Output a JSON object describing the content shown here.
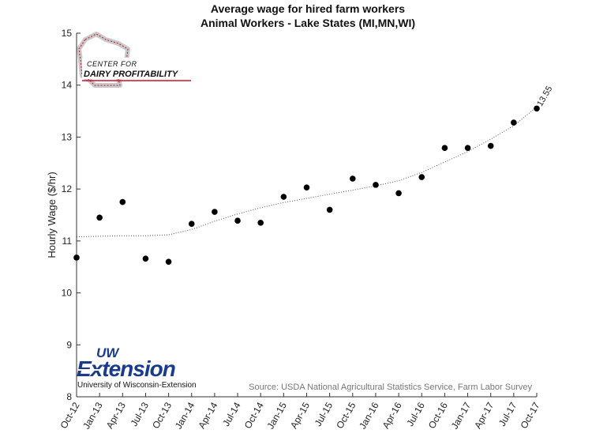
{
  "chart_data": {
    "type": "scatter",
    "title": "Average wage for hired farm workers",
    "subtitle": "Animal Workers - Lake States (MI,MN,WI)",
    "ylabel": "Hourly Wage ($/hr)",
    "xlabel": "",
    "ylim": [
      8,
      15
    ],
    "yticks": [
      8,
      9,
      10,
      11,
      12,
      13,
      14,
      15
    ],
    "categories": [
      "Oct-12",
      "Jan-13",
      "Apr-13",
      "Jul-13",
      "Oct-13",
      "Jan-14",
      "Apr-14",
      "Jul-14",
      "Oct-14",
      "Jan-15",
      "Apr-15",
      "Jul-15",
      "Oct-15",
      "Jan-16",
      "Apr-16",
      "Jul-16",
      "Oct-16",
      "Jan-17",
      "Apr-17",
      "Jul-17",
      "Oct-17"
    ],
    "values": [
      10.68,
      11.45,
      11.75,
      10.66,
      10.6,
      11.33,
      11.56,
      11.39,
      11.35,
      11.85,
      12.03,
      11.6,
      12.2,
      12.08,
      11.92,
      12.23,
      12.79,
      12.79,
      12.83,
      13.28,
      13.55
    ],
    "trendline": [
      11.08,
      11.09,
      11.1,
      11.1,
      11.12,
      11.22,
      11.38,
      11.52,
      11.64,
      11.74,
      11.82,
      11.9,
      11.98,
      12.06,
      12.16,
      12.32,
      12.52,
      12.72,
      12.96,
      13.22,
      13.58
    ],
    "last_value_label": "13.55",
    "source": "Source: USDA National Agricultural Statistics Service, Farm Labor Survey",
    "grid": false
  },
  "logos": {
    "cdp_line1": "CENTER FOR",
    "cdp_line2": "DAIRY PROFITABILITY",
    "uw_top": "UW",
    "uw_main": "Extension",
    "uw_sub": "University of Wisconsin-Extension"
  },
  "colors": {
    "marker": "#000000",
    "trendline": "#555555",
    "axis": "#333333",
    "source_text": "#777777",
    "cdp_red": "#c8102e",
    "uw_blue": "#1a3a8a"
  }
}
